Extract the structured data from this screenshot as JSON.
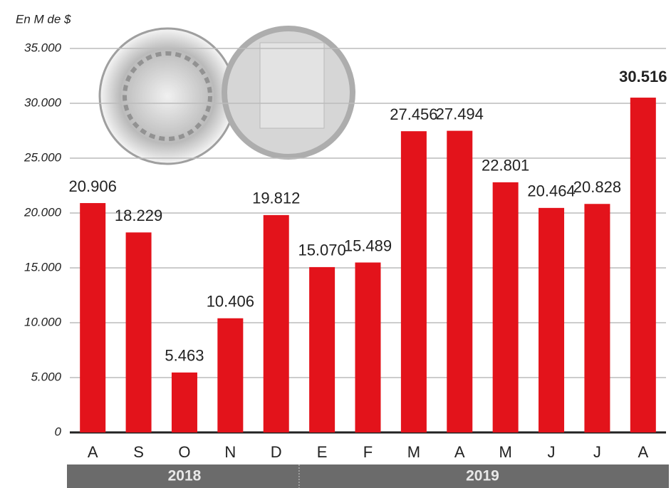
{
  "chart_data": {
    "type": "bar",
    "axis_label": "En M de $",
    "categories": [
      "A",
      "S",
      "O",
      "N",
      "D",
      "E",
      "F",
      "M",
      "A",
      "M",
      "J",
      "J",
      "A"
    ],
    "values": [
      20906,
      18229,
      5463,
      10406,
      19812,
      15070,
      15489,
      27456,
      27494,
      22801,
      20464,
      20828,
      30516
    ],
    "value_labels": [
      "20.906",
      "18.229",
      "5.463",
      "10.406",
      "19.812",
      "15.070",
      "15.489",
      "27.456",
      "27.494",
      "22.801",
      "20.464",
      "20.828",
      "30.516"
    ],
    "color": "#e3131b",
    "ylim": [
      0,
      35000
    ],
    "yticks": [
      0,
      {
        "value": 5000,
        "label": "5.000"
      },
      {
        "value": 10000,
        "label": "10.000"
      },
      {
        "value": 15000,
        "label": "15.000"
      },
      {
        "value": 20000,
        "label": "20.000"
      },
      {
        "value": 25000,
        "label": "25.000"
      },
      {
        "value": 30000,
        "label": "30.000"
      },
      {
        "value": 35000,
        "label": "35.000"
      }
    ],
    "grid": true,
    "highlight_index": 12,
    "groups": [
      {
        "label": "2018",
        "count": 5
      },
      {
        "label": "2019",
        "count": 8
      }
    ]
  }
}
